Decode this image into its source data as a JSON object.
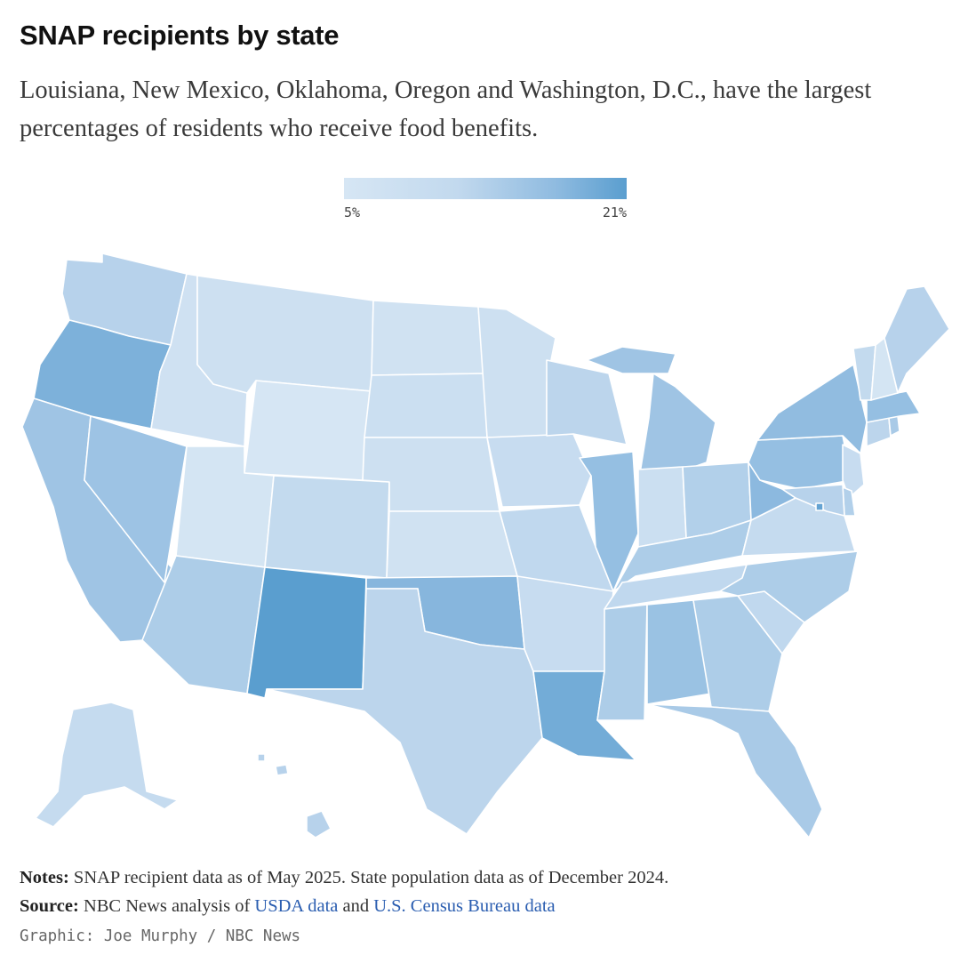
{
  "header": {
    "title": "SNAP recipients by state",
    "subtitle": "Louisiana, New Mexico, Oklahoma, Oregon and Washington, D.C., have the largest percentages of residents who receive food benefits."
  },
  "legend": {
    "min_label": "5%",
    "max_label": "21%",
    "min_value": 5,
    "max_value": 21,
    "colors": [
      "#d6e6f4",
      "#c2d9ee",
      "#8fbbe0",
      "#5a9ecf"
    ]
  },
  "map": {
    "region": "United States",
    "unit": "percent of residents receiving SNAP",
    "states": {
      "WA": 11.5,
      "OR": 17.5,
      "CA": 14.0,
      "NV": 14.2,
      "ID": 7.0,
      "MT": 7.5,
      "WY": 5.0,
      "UT": 5.5,
      "AZ": 12.5,
      "NM": 21.0,
      "CO": 10.0,
      "ND": 6.5,
      "SD": 8.0,
      "NE": 7.5,
      "KS": 6.5,
      "OK": 16.5,
      "TX": 11.0,
      "MN": 7.5,
      "IA": 9.0,
      "MO": 10.5,
      "AR": 9.0,
      "LA": 18.5,
      "WI": 11.0,
      "IL": 15.0,
      "MI": 14.0,
      "IN": 8.0,
      "OH": 12.0,
      "KY": 12.5,
      "TN": 10.5,
      "MS": 12.5,
      "AL": 14.5,
      "GA": 12.5,
      "FL": 13.0,
      "SC": 10.5,
      "NC": 12.5,
      "VA": 9.5,
      "WV": 16.0,
      "PA": 15.0,
      "NY": 15.5,
      "VT": 10.0,
      "NH": 5.5,
      "ME": 11.5,
      "MA": 15.0,
      "CT": 11.0,
      "RI": 13.0,
      "NJ": 9.0,
      "DE": 12.0,
      "MD": 11.5,
      "DC": 20.0,
      "AK": 9.5,
      "HI": 11.5
    }
  },
  "footer": {
    "notes_label": "Notes:",
    "notes_text": " SNAP recipient data as of May 2025. State population data as of December 2024.",
    "source_label": "Source:",
    "source_pre": " NBC News analysis of ",
    "source_link1": "USDA data",
    "source_mid": " and ",
    "source_link2": "U.S. Census Bureau data",
    "credit": "Graphic: Joe Murphy / NBC News"
  }
}
